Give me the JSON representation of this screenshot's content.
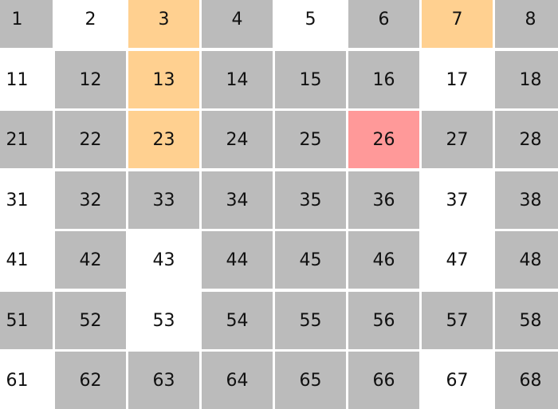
{
  "colors": {
    "gray": "#bbbbbb",
    "white": "#ffffff",
    "orange": "#ffd090",
    "red": "#ff9999"
  },
  "grid": {
    "rows": [
      [
        {
          "n": "1",
          "c": "gray"
        },
        {
          "n": "2",
          "c": "white"
        },
        {
          "n": "3",
          "c": "orange"
        },
        {
          "n": "4",
          "c": "gray"
        },
        {
          "n": "5",
          "c": "white"
        },
        {
          "n": "6",
          "c": "gray"
        },
        {
          "n": "7",
          "c": "orange"
        },
        {
          "n": "8",
          "c": "gray"
        }
      ],
      [
        {
          "n": "11",
          "c": "white"
        },
        {
          "n": "12",
          "c": "gray"
        },
        {
          "n": "13",
          "c": "orange"
        },
        {
          "n": "14",
          "c": "gray"
        },
        {
          "n": "15",
          "c": "gray"
        },
        {
          "n": "16",
          "c": "gray"
        },
        {
          "n": "17",
          "c": "white"
        },
        {
          "n": "18",
          "c": "gray"
        }
      ],
      [
        {
          "n": "21",
          "c": "gray"
        },
        {
          "n": "22",
          "c": "gray"
        },
        {
          "n": "23",
          "c": "orange"
        },
        {
          "n": "24",
          "c": "gray"
        },
        {
          "n": "25",
          "c": "gray"
        },
        {
          "n": "26",
          "c": "red"
        },
        {
          "n": "27",
          "c": "gray"
        },
        {
          "n": "28",
          "c": "gray"
        }
      ],
      [
        {
          "n": "31",
          "c": "white"
        },
        {
          "n": "32",
          "c": "gray"
        },
        {
          "n": "33",
          "c": "gray"
        },
        {
          "n": "34",
          "c": "gray"
        },
        {
          "n": "35",
          "c": "gray"
        },
        {
          "n": "36",
          "c": "gray"
        },
        {
          "n": "37",
          "c": "white"
        },
        {
          "n": "38",
          "c": "gray"
        }
      ],
      [
        {
          "n": "41",
          "c": "white"
        },
        {
          "n": "42",
          "c": "gray"
        },
        {
          "n": "43",
          "c": "white"
        },
        {
          "n": "44",
          "c": "gray"
        },
        {
          "n": "45",
          "c": "gray"
        },
        {
          "n": "46",
          "c": "gray"
        },
        {
          "n": "47",
          "c": "white"
        },
        {
          "n": "48",
          "c": "gray"
        }
      ],
      [
        {
          "n": "51",
          "c": "gray"
        },
        {
          "n": "52",
          "c": "gray"
        },
        {
          "n": "53",
          "c": "white"
        },
        {
          "n": "54",
          "c": "gray"
        },
        {
          "n": "55",
          "c": "gray"
        },
        {
          "n": "56",
          "c": "gray"
        },
        {
          "n": "57",
          "c": "gray"
        },
        {
          "n": "58",
          "c": "gray"
        }
      ],
      [
        {
          "n": "61",
          "c": "white"
        },
        {
          "n": "62",
          "c": "gray"
        },
        {
          "n": "63",
          "c": "gray"
        },
        {
          "n": "64",
          "c": "gray"
        },
        {
          "n": "65",
          "c": "gray"
        },
        {
          "n": "66",
          "c": "gray"
        },
        {
          "n": "67",
          "c": "white"
        },
        {
          "n": "68",
          "c": "gray"
        }
      ]
    ]
  }
}
